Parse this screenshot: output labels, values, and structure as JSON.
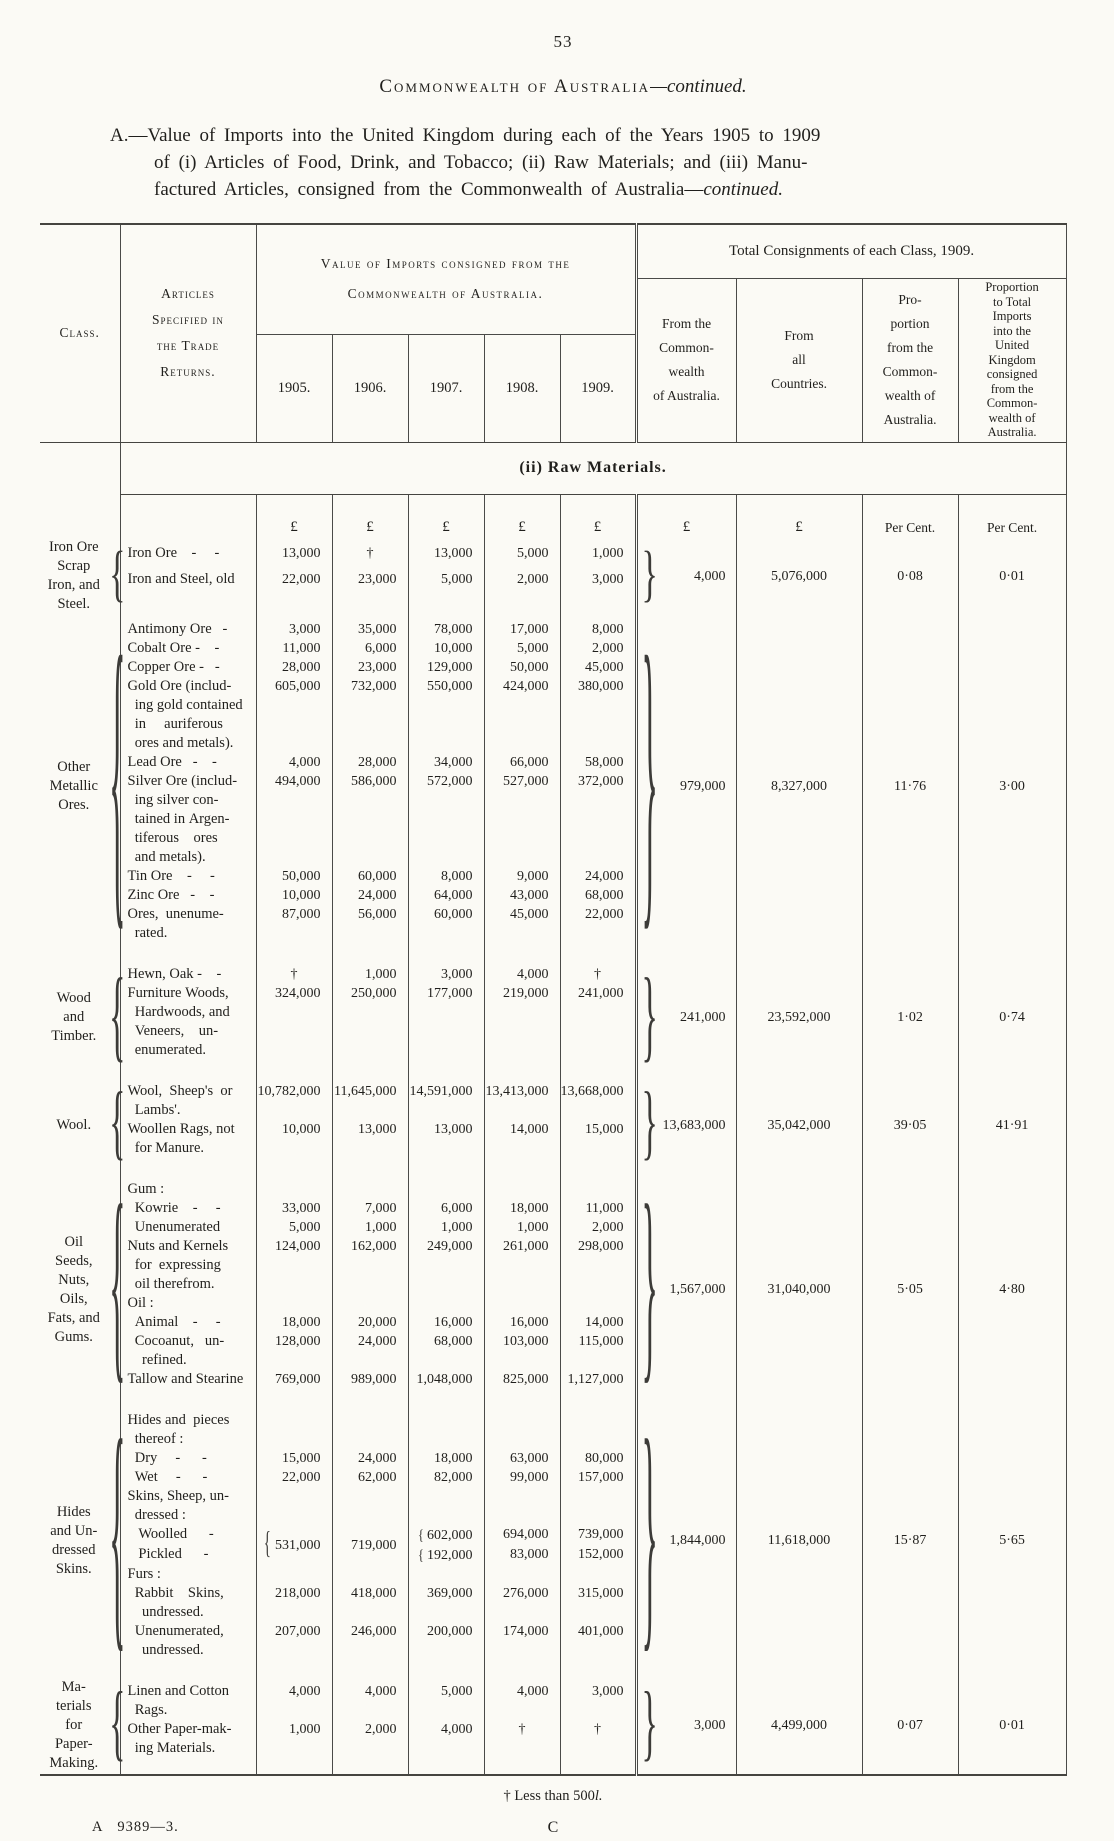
{
  "page": {
    "number": "53",
    "footnote_main": "† Less than 500",
    "footnote_l": "l.",
    "print_ref": "A   9389—3.",
    "signature": "C"
  },
  "title": {
    "main": "Commonwealth of Australia",
    "continued": "—continued."
  },
  "caption": {
    "line1": "A.—Value of Imports into the United Kingdom during each of the Years 1905 to 1909",
    "line2": "of (i) Articles of Food, Drink, and Tobacco; (ii) Raw Materials; and (iii) Manu-",
    "line3a": "factured Articles, consigned from the Commonwealth of Australia—",
    "line3_italic": "continued."
  },
  "table": {
    "header": {
      "class_label": "Class.",
      "articles_label": "Articles\nSpecified in\nthe Trade\nReturns.",
      "value_imports": "Value of Imports consigned from the\nCommonwealth of Australia.",
      "total_consignments": "Total Consignments of each Class, 1909.",
      "years": [
        "1905.",
        "1906.",
        "1907.",
        "1908.",
        "1909."
      ],
      "total_cols": [
        "From the\nCommon-\nwealth\nof Australia.",
        "From\nall\nCountries.",
        "Pro-\nportion\nfrom the\nCommon-\nwealth of\nAustralia.",
        "Proportion\nto Total\nImports\ninto the\nUnited\nKingdom\nconsigned\nfrom the\nCommon-\nwealth of\nAustralia."
      ]
    },
    "section_title": "(ii) Raw Materials.",
    "units": [
      "£",
      "£",
      "£",
      "£",
      "£",
      "£",
      "£",
      "Per Cent.",
      "Per Cent."
    ],
    "sections": [
      {
        "class_label": "Iron Ore\nScrap\nIron, and\nSteel.",
        "rows": [
          {
            "label": "Iron Ore    -     -",
            "values": [
              "13,000",
              "†",
              "13,000",
              "5,000",
              "1,000"
            ]
          },
          {
            "label": "Iron and Steel, old",
            "values": [
              "22,000",
              "23,000",
              "5,000",
              "2,000",
              "3,000"
            ]
          }
        ],
        "totals": {
          "from_commonwealth": "4,000",
          "from_all_countries": "5,076,000",
          "proportion": "0·08",
          "proportion_total": "0·01"
        }
      },
      {
        "class_label": "Other\nMetallic\nOres.",
        "rows": [
          {
            "label": "Antimony Ore   -",
            "values": [
              "3,000",
              "35,000",
              "78,000",
              "17,000",
              "8,000"
            ]
          },
          {
            "label": "Cobalt Ore -    -",
            "values": [
              "11,000",
              "6,000",
              "10,000",
              "5,000",
              "2,000"
            ]
          },
          {
            "label": "Copper Ore -   -",
            "values": [
              "28,000",
              "23,000",
              "129,000",
              "50,000",
              "45,000"
            ]
          },
          {
            "label": "Gold Ore (includ-\n  ing gold contained\n  in     auriferous\n  ores and metals).",
            "values": [
              "605,000",
              "732,000",
              "550,000",
              "424,000",
              "380,000"
            ]
          },
          {
            "label": "Lead Ore   -    -",
            "values": [
              "4,000",
              "28,000",
              "34,000",
              "66,000",
              "58,000"
            ]
          },
          {
            "label": "Silver Ore (includ-\n  ing silver con-\n  tained in Argen-\n  tiferous    ores\n  and metals).",
            "values": [
              "494,000",
              "586,000",
              "572,000",
              "527,000",
              "372,000"
            ]
          },
          {
            "label": "Tin Ore    -     -",
            "values": [
              "50,000",
              "60,000",
              "8,000",
              "9,000",
              "24,000"
            ]
          },
          {
            "label": "Zinc Ore   -    -",
            "values": [
              "10,000",
              "24,000",
              "64,000",
              "43,000",
              "68,000"
            ]
          },
          {
            "label": "Ores,  unenume-\n  rated.",
            "values": [
              "87,000",
              "56,000",
              "60,000",
              "45,000",
              "22,000"
            ]
          }
        ],
        "totals": {
          "from_commonwealth": "979,000",
          "from_all_countries": "8,327,000",
          "proportion": "11·76",
          "proportion_total": "3·00"
        }
      },
      {
        "class_label": "Wood\nand\nTimber.",
        "rows": [
          {
            "label": "Hewn, Oak -    -",
            "values": [
              "†",
              "1,000",
              "3,000",
              "4,000",
              "†"
            ]
          },
          {
            "label": "Furniture Woods,\n  Hardwoods, and\n  Veneers,    un-\n  enumerated.",
            "values": [
              "324,000",
              "250,000",
              "177,000",
              "219,000",
              "241,000"
            ]
          }
        ],
        "totals": {
          "from_commonwealth": "241,000",
          "from_all_countries": "23,592,000",
          "proportion": "1·02",
          "proportion_total": "0·74"
        }
      },
      {
        "class_label": "Wool.",
        "rows": [
          {
            "label": "Wool,  Sheep's  or\n  Lambs'.",
            "values": [
              "10,782,000",
              "11,645,000",
              "14,591,000",
              "13,413,000",
              "13,668,000"
            ]
          },
          {
            "label": "Woollen Rags, not\n  for Manure.",
            "values": [
              "10,000",
              "13,000",
              "13,000",
              "14,000",
              "15,000"
            ]
          }
        ],
        "totals": {
          "from_commonwealth": "13,683,000",
          "from_all_countries": "35,042,000",
          "proportion": "39·05",
          "proportion_total": "41·91"
        }
      },
      {
        "class_label": "Oil\nSeeds,\nNuts,\nOils,\nFats, and\nGums.",
        "rows": [
          {
            "label": "Gum :",
            "values": [
              "",
              "",
              "",
              "",
              ""
            ]
          },
          {
            "label": "  Kowrie    -     -",
            "values": [
              "33,000",
              "7,000",
              "6,000",
              "18,000",
              "11,000"
            ]
          },
          {
            "label": "  Unenumerated",
            "values": [
              "5,000",
              "1,000",
              "1,000",
              "1,000",
              "2,000"
            ]
          },
          {
            "label": "Nuts and Kernels\n  for  expressing\n  oil therefrom.",
            "values": [
              "124,000",
              "162,000",
              "249,000",
              "261,000",
              "298,000"
            ]
          },
          {
            "label": "Oil :",
            "values": [
              "",
              "",
              "",
              "",
              ""
            ]
          },
          {
            "label": "  Animal    -     -",
            "values": [
              "18,000",
              "20,000",
              "16,000",
              "16,000",
              "14,000"
            ]
          },
          {
            "label": "  Cocoanut,   un-\n    refined.",
            "values": [
              "128,000",
              "24,000",
              "68,000",
              "103,000",
              "115,000"
            ]
          },
          {
            "label": "Tallow and Stearine",
            "values": [
              "769,000",
              "989,000",
              "1,048,000",
              "825,000",
              "1,127,000"
            ]
          }
        ],
        "totals": {
          "from_commonwealth": "1,567,000",
          "from_all_countries": "31,040,000",
          "proportion": "5·05",
          "proportion_total": "4·80"
        }
      },
      {
        "class_label": "Hides\nand Un-\ndressed\nSkins.",
        "rows": [
          {
            "label": "Hides and  pieces\n  thereof :",
            "values": [
              "",
              "",
              "",
              "",
              ""
            ]
          },
          {
            "label": "  Dry     -      -",
            "values": [
              "15,000",
              "24,000",
              "18,000",
              "63,000",
              "80,000"
            ]
          },
          {
            "label": "  Wet     -      -",
            "values": [
              "22,000",
              "62,000",
              "82,000",
              "99,000",
              "157,000"
            ]
          },
          {
            "label": "Skins, Sheep, un-\n  dressed :",
            "values": [
              "",
              "",
              "",
              "",
              ""
            ]
          },
          {
            "label": "   Woolled      -",
            "values": [
              "531,000",
              "719,000",
              "602,000",
              "694,000",
              "739,000"
            ],
            "spans": [
              2,
              2,
              1,
              1,
              1
            ],
            "braced": [
              2,
              0,
              1,
              0,
              0
            ]
          },
          {
            "label": "   Pickled      -",
            "values": [
              null,
              null,
              "192,000",
              "83,000",
              "152,000"
            ],
            "braced": [
              0,
              0,
              1,
              0,
              0
            ]
          },
          {
            "label": "Furs :",
            "values": [
              "",
              "",
              "",
              "",
              ""
            ]
          },
          {
            "label": "  Rabbit    Skins,\n    undressed.",
            "values": [
              "218,000",
              "418,000",
              "369,000",
              "276,000",
              "315,000"
            ]
          },
          {
            "label": "  Unenumerated,\n    undressed.",
            "values": [
              "207,000",
              "246,000",
              "200,000",
              "174,000",
              "401,000"
            ]
          }
        ],
        "totals": {
          "from_commonwealth": "1,844,000",
          "from_all_countries": "11,618,000",
          "proportion": "15·87",
          "proportion_total": "5·65"
        }
      },
      {
        "class_label": "Ma-\nterials\nfor\nPaper-\nMaking.",
        "rows": [
          {
            "label": "Linen and Cotton\n  Rags.",
            "values": [
              "4,000",
              "4,000",
              "5,000",
              "4,000",
              "3,000"
            ]
          },
          {
            "label": "Other Paper-mak-\n  ing Materials.",
            "values": [
              "1,000",
              "2,000",
              "4,000",
              "†",
              "†"
            ]
          }
        ],
        "totals": {
          "from_commonwealth": "3,000",
          "from_all_countries": "4,499,000",
          "proportion": "0·07",
          "proportion_total": "0·01"
        }
      }
    ]
  }
}
